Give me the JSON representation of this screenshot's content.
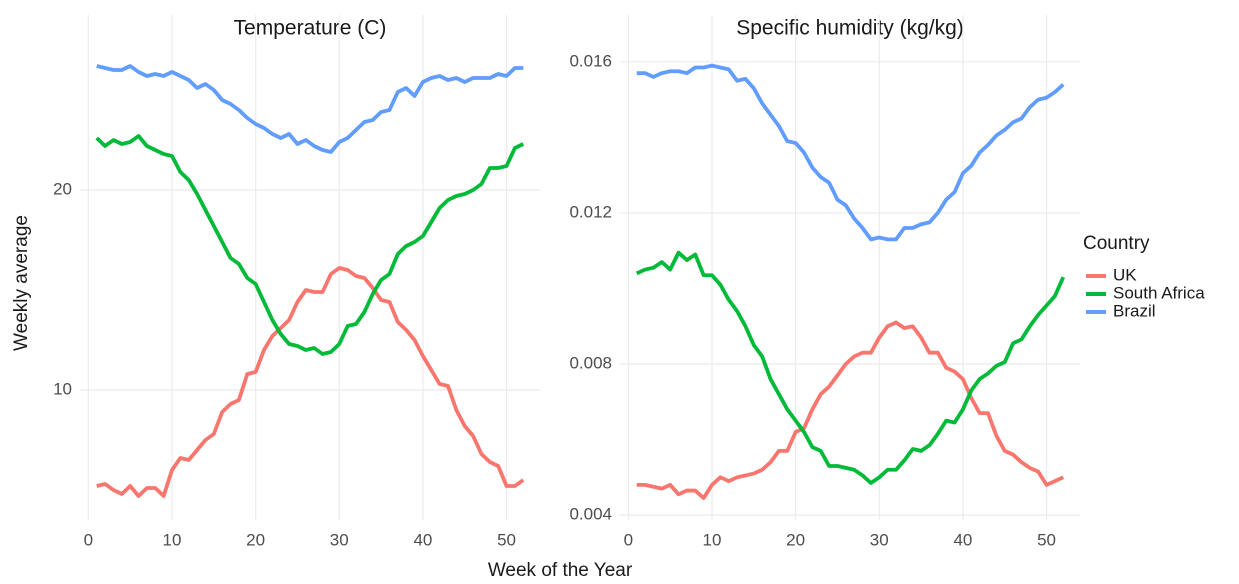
{
  "chart_data": [
    {
      "type": "line",
      "title": "Temperature (C)",
      "x": [
        1,
        2,
        3,
        4,
        5,
        6,
        7,
        8,
        9,
        10,
        11,
        12,
        13,
        14,
        15,
        16,
        17,
        18,
        19,
        20,
        21,
        22,
        23,
        24,
        25,
        26,
        27,
        28,
        29,
        30,
        31,
        32,
        33,
        34,
        35,
        36,
        37,
        38,
        39,
        40,
        41,
        42,
        43,
        44,
        45,
        46,
        47,
        48,
        49,
        50,
        51,
        52
      ],
      "xlim": [
        -1,
        54
      ],
      "xticks": [
        0,
        10,
        20,
        30,
        40,
        50
      ],
      "ylim": [
        3.5,
        28.75
      ],
      "yticks": [
        10,
        20
      ],
      "grid": true,
      "series": [
        {
          "name": "UK",
          "color": "#F8766D",
          "values": [
            5.2,
            5.3,
            5.0,
            4.8,
            5.2,
            4.7,
            5.1,
            5.1,
            4.7,
            6.0,
            6.6,
            6.5,
            7.0,
            7.5,
            7.8,
            8.9,
            9.3,
            9.5,
            10.8,
            10.9,
            12.0,
            12.7,
            13.1,
            13.5,
            14.4,
            15.0,
            14.9,
            14.9,
            15.8,
            16.1,
            16.0,
            15.7,
            15.6,
            15.1,
            14.5,
            14.4,
            13.4,
            13.0,
            12.5,
            11.7,
            11.0,
            10.3,
            10.2,
            9.0,
            8.2,
            7.7,
            6.8,
            6.4,
            6.2,
            5.2,
            5.2,
            5.5
          ]
        },
        {
          "name": "South Africa",
          "color": "#00BA38",
          "values": [
            22.6,
            22.2,
            22.5,
            22.3,
            22.4,
            22.7,
            22.2,
            22.0,
            21.8,
            21.7,
            20.9,
            20.5,
            19.8,
            19.0,
            18.2,
            17.4,
            16.6,
            16.3,
            15.6,
            15.3,
            14.4,
            13.5,
            12.8,
            12.3,
            12.2,
            12.0,
            12.1,
            11.8,
            11.9,
            12.3,
            13.2,
            13.3,
            13.9,
            14.8,
            15.5,
            15.8,
            16.8,
            17.2,
            17.4,
            17.7,
            18.4,
            19.1,
            19.5,
            19.7,
            19.8,
            20.0,
            20.3,
            21.1,
            21.1,
            21.2,
            22.1,
            22.3
          ]
        },
        {
          "name": "Brazil",
          "color": "#619CFF",
          "values": [
            26.2,
            26.1,
            26.0,
            26.0,
            26.2,
            25.9,
            25.7,
            25.8,
            25.7,
            25.9,
            25.7,
            25.5,
            25.1,
            25.3,
            25.0,
            24.5,
            24.3,
            24.0,
            23.6,
            23.3,
            23.1,
            22.8,
            22.6,
            22.8,
            22.3,
            22.5,
            22.2,
            22.0,
            21.9,
            22.4,
            22.6,
            23.0,
            23.4,
            23.5,
            23.9,
            24.0,
            24.9,
            25.1,
            24.7,
            25.4,
            25.6,
            25.7,
            25.5,
            25.6,
            25.4,
            25.6,
            25.6,
            25.6,
            25.8,
            25.7,
            26.1,
            26.1
          ]
        }
      ]
    },
    {
      "type": "line",
      "title": "Specific humidity (kg/kg)",
      "x": [
        1,
        2,
        3,
        4,
        5,
        6,
        7,
        8,
        9,
        10,
        11,
        12,
        13,
        14,
        15,
        16,
        17,
        18,
        19,
        20,
        21,
        22,
        23,
        24,
        25,
        26,
        27,
        28,
        29,
        30,
        31,
        32,
        33,
        34,
        35,
        36,
        37,
        38,
        39,
        40,
        41,
        42,
        43,
        44,
        45,
        46,
        47,
        48,
        49,
        50,
        51,
        52
      ],
      "xlim": [
        -1,
        54
      ],
      "xticks": [
        0,
        10,
        20,
        30,
        40,
        50
      ],
      "ylim": [
        0.00387,
        0.01724
      ],
      "yticks": [
        0.004,
        0.008,
        0.012,
        0.016
      ],
      "grid": true,
      "series": [
        {
          "name": "UK",
          "color": "#F8766D",
          "values": [
            0.0048,
            0.0048,
            0.00475,
            0.0047,
            0.0048,
            0.00455,
            0.00465,
            0.00465,
            0.00445,
            0.0048,
            0.005,
            0.0049,
            0.005,
            0.00505,
            0.0051,
            0.0052,
            0.0054,
            0.0057,
            0.0057,
            0.0062,
            0.0063,
            0.0068,
            0.0072,
            0.0074,
            0.0077,
            0.008,
            0.0082,
            0.0083,
            0.0083,
            0.0087,
            0.009,
            0.0091,
            0.00895,
            0.009,
            0.0087,
            0.0083,
            0.0083,
            0.0079,
            0.0078,
            0.0076,
            0.0071,
            0.0067,
            0.0067,
            0.0061,
            0.0057,
            0.0056,
            0.0054,
            0.00525,
            0.00515,
            0.0048,
            0.0049,
            0.005
          ]
        },
        {
          "name": "South Africa",
          "color": "#00BA38",
          "values": [
            0.0104,
            0.0105,
            0.01055,
            0.0107,
            0.0105,
            0.01095,
            0.01075,
            0.0109,
            0.01035,
            0.01035,
            0.0101,
            0.0097,
            0.0094,
            0.009,
            0.0085,
            0.0082,
            0.0076,
            0.0072,
            0.0068,
            0.0065,
            0.0062,
            0.0058,
            0.0057,
            0.0053,
            0.0053,
            0.00525,
            0.0052,
            0.00505,
            0.00485,
            0.005,
            0.0052,
            0.0052,
            0.00545,
            0.00575,
            0.0057,
            0.00585,
            0.00615,
            0.0065,
            0.00645,
            0.0068,
            0.0073,
            0.0076,
            0.00775,
            0.00795,
            0.00805,
            0.00855,
            0.00865,
            0.009,
            0.0093,
            0.00955,
            0.0098,
            0.0103
          ]
        },
        {
          "name": "Brazil",
          "color": "#619CFF",
          "values": [
            0.0157,
            0.0157,
            0.0156,
            0.0157,
            0.01575,
            0.01575,
            0.0157,
            0.01585,
            0.01585,
            0.0159,
            0.01585,
            0.0158,
            0.0155,
            0.01555,
            0.0153,
            0.0149,
            0.0146,
            0.0143,
            0.0139,
            0.01385,
            0.0136,
            0.0132,
            0.01295,
            0.0128,
            0.01235,
            0.0122,
            0.01185,
            0.0116,
            0.0113,
            0.01135,
            0.0113,
            0.0113,
            0.0116,
            0.0116,
            0.0117,
            0.01175,
            0.012,
            0.01235,
            0.01255,
            0.01305,
            0.01325,
            0.0136,
            0.0138,
            0.01405,
            0.0142,
            0.0144,
            0.0145,
            0.0148,
            0.015,
            0.01505,
            0.0152,
            0.0154
          ]
        }
      ]
    }
  ],
  "x_label": "Week of the Year",
  "y_label": "Weekly average",
  "legend_title": "Country"
}
